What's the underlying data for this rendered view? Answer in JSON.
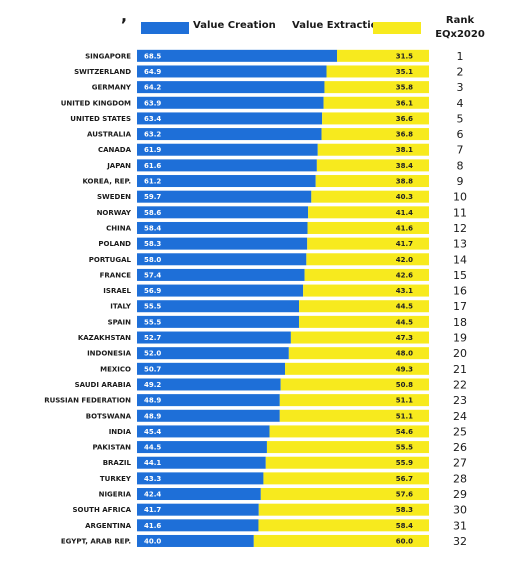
{
  "header": {
    "stray_mark": ",",
    "rank_line1": "Rank",
    "rank_line2": "EQx2020"
  },
  "colors": {
    "creation": "#1e6fd8",
    "extraction": "#f7ea1e"
  },
  "chart_data": {
    "type": "bar",
    "orientation": "horizontal",
    "stacked": true,
    "normalized_total": 100,
    "categories": [
      "SINGAPORE",
      "SWITZERLAND",
      "GERMANY",
      "UNITED KINGDOM",
      "UNITED STATES",
      "AUSTRALIA",
      "CANADA",
      "JAPAN",
      "KOREA, REP.",
      "SWEDEN",
      "NORWAY",
      "CHINA",
      "POLAND",
      "PORTUGAL",
      "FRANCE",
      "ISRAEL",
      "ITALY",
      "SPAIN",
      "KAZAKHSTAN",
      "INDONESIA",
      "MEXICO",
      "SAUDI ARABIA",
      "RUSSIAN FEDERATION",
      "BOTSWANA",
      "INDIA",
      "PAKISTAN",
      "BRAZIL",
      "TURKEY",
      "NIGERIA",
      "SOUTH AFRICA",
      "ARGENTINA",
      "EGYPT, ARAB REP."
    ],
    "series": [
      {
        "name": "Value Creation",
        "labels": [
          "68.5",
          "64.9",
          "64.2",
          "63.9",
          "63.4",
          "63.2",
          "61.9",
          "61.6",
          "61.2",
          "59.7",
          "58.6",
          "58.4",
          "58.3",
          "58.0",
          "57.4",
          "56.9",
          "55.5",
          "55.5",
          "52.7",
          "52.0",
          "50.7",
          "49.2",
          "48.9",
          "48.9",
          "45.4",
          "44.5",
          "44.1",
          "43.3",
          "42.4",
          "41.7",
          "41.6",
          "40.0"
        ],
        "values": [
          68.5,
          64.9,
          64.2,
          63.9,
          63.4,
          63.2,
          61.9,
          61.6,
          61.2,
          59.7,
          58.6,
          58.4,
          58.3,
          58.0,
          57.4,
          56.9,
          55.5,
          55.5,
          52.7,
          52.0,
          50.7,
          49.2,
          48.9,
          48.9,
          45.4,
          44.5,
          44.1,
          43.3,
          42.4,
          41.7,
          41.6,
          40.0
        ]
      },
      {
        "name": "Value Extraction",
        "labels": [
          "31.5",
          "35.1",
          "35.8",
          "36.1",
          "36.6",
          "36.8",
          "38.1",
          "38.4",
          "38.8",
          "40.3",
          "41.4",
          "41.6",
          "41.7",
          "42.0",
          "42.6",
          "43.1",
          "44.5",
          "44.5",
          "47.3",
          "48.0",
          "49.3",
          "50.8",
          "51.1",
          "51.1",
          "54.6",
          "55.5",
          "55.9",
          "56.7",
          "57.6",
          "58.3",
          "58.4",
          "60.0"
        ],
        "values": [
          31.5,
          35.1,
          35.8,
          36.1,
          36.6,
          36.8,
          38.1,
          38.4,
          38.8,
          40.3,
          41.4,
          41.6,
          41.7,
          42.0,
          42.6,
          43.1,
          44.5,
          44.5,
          47.3,
          48.0,
          49.3,
          50.8,
          51.1,
          51.1,
          54.6,
          55.5,
          55.9,
          56.7,
          57.6,
          58.3,
          58.4,
          60.0
        ]
      }
    ],
    "ranks": [
      "1",
      "2",
      "3",
      "4",
      "5",
      "6",
      "7",
      "8",
      "9",
      "10",
      "11",
      "12",
      "13",
      "14",
      "15",
      "16",
      "17",
      "18",
      "19",
      "20",
      "21",
      "22",
      "23",
      "24",
      "25",
      "26",
      "27",
      "28",
      "29",
      "30",
      "31",
      "32"
    ]
  }
}
